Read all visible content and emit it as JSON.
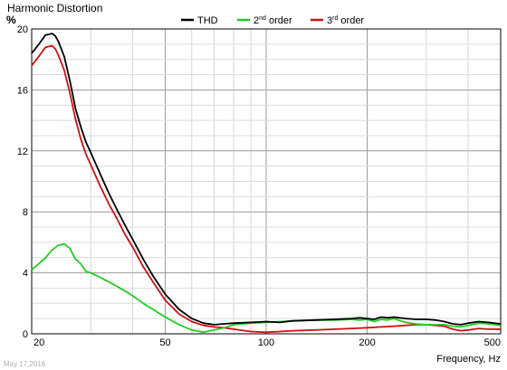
{
  "chart_data": {
    "type": "line",
    "title": "Harmonic Distortion",
    "ylabel": "%",
    "xlabel": "Frequency, Hz",
    "footer": "May 17,2016",
    "x_scale": "log",
    "xlim": [
      20,
      500
    ],
    "ylim": [
      0,
      20
    ],
    "grid": true,
    "legend_position": "top-center",
    "xticks": [
      20,
      50,
      100,
      200,
      500
    ],
    "xtick_labels": [
      "20",
      "50",
      "100",
      "200",
      "500"
    ],
    "yticks": [
      0,
      4,
      8,
      12,
      16,
      20
    ],
    "ytick_labels": [
      "0",
      "4",
      "8",
      "12",
      "16",
      "20"
    ],
    "series": [
      {
        "name": "THD",
        "name_parts": [
          "THD",
          "",
          ""
        ],
        "color": "#000000",
        "x": [
          20,
          21,
          22,
          23,
          23.5,
          24,
          25,
          26,
          27,
          28,
          29,
          30,
          32,
          34,
          36,
          38,
          40,
          43,
          46,
          50,
          55,
          60,
          65,
          70,
          75,
          80,
          90,
          100,
          110,
          120,
          140,
          160,
          180,
          190,
          200,
          210,
          220,
          230,
          240,
          260,
          280,
          300,
          320,
          340,
          360,
          380,
          400,
          430,
          460,
          500
        ],
        "values": [
          18.4,
          19.0,
          19.6,
          19.7,
          19.55,
          19.2,
          18.2,
          16.6,
          14.8,
          13.6,
          12.6,
          11.9,
          10.5,
          9.2,
          8.1,
          7.1,
          6.2,
          4.9,
          3.8,
          2.6,
          1.6,
          1.0,
          0.7,
          0.6,
          0.65,
          0.7,
          0.75,
          0.8,
          0.75,
          0.85,
          0.9,
          0.95,
          1.0,
          1.05,
          1.0,
          0.95,
          1.1,
          1.05,
          1.1,
          1.0,
          0.95,
          0.95,
          0.9,
          0.8,
          0.65,
          0.6,
          0.7,
          0.8,
          0.75,
          0.65
        ]
      },
      {
        "name": "2nd order",
        "name_parts": [
          "2",
          "nd",
          " order"
        ],
        "color": "#22cc22",
        "x": [
          20,
          21,
          22,
          23,
          24,
          25,
          26,
          27,
          28,
          29,
          30,
          32,
          34,
          36,
          38,
          40,
          43,
          46,
          50,
          55,
          60,
          65,
          70,
          75,
          80,
          90,
          100,
          110,
          120,
          140,
          160,
          180,
          190,
          200,
          210,
          220,
          230,
          240,
          260,
          280,
          300,
          320,
          340,
          360,
          380,
          400,
          430,
          460,
          500
        ],
        "values": [
          4.2,
          4.6,
          5.0,
          5.5,
          5.8,
          5.9,
          5.6,
          4.9,
          4.6,
          4.1,
          4.0,
          3.7,
          3.4,
          3.1,
          2.8,
          2.5,
          2.0,
          1.6,
          1.1,
          0.6,
          0.25,
          0.1,
          0.25,
          0.4,
          0.6,
          0.7,
          0.75,
          0.8,
          0.85,
          0.9,
          0.9,
          0.95,
          0.9,
          0.95,
          0.8,
          0.95,
          0.9,
          1.0,
          0.75,
          0.65,
          0.6,
          0.6,
          0.6,
          0.5,
          0.45,
          0.55,
          0.7,
          0.65,
          0.55
        ]
      },
      {
        "name": "3rd order",
        "name_parts": [
          "3",
          "rd",
          " order"
        ],
        "color": "#cc1111",
        "x": [
          20,
          21,
          22,
          23,
          23.5,
          24,
          25,
          26,
          27,
          28,
          29,
          30,
          32,
          34,
          36,
          38,
          40,
          43,
          46,
          50,
          55,
          60,
          65,
          70,
          75,
          80,
          90,
          100,
          110,
          120,
          140,
          160,
          180,
          200,
          220,
          240,
          260,
          280,
          300,
          320,
          340,
          360,
          380,
          400,
          430,
          460,
          500
        ],
        "values": [
          17.6,
          18.2,
          18.8,
          18.9,
          18.7,
          18.3,
          17.3,
          15.8,
          14.1,
          12.8,
          11.8,
          11.1,
          9.7,
          8.5,
          7.5,
          6.5,
          5.7,
          4.4,
          3.4,
          2.2,
          1.3,
          0.8,
          0.55,
          0.45,
          0.4,
          0.3,
          0.15,
          0.1,
          0.15,
          0.2,
          0.25,
          0.3,
          0.35,
          0.4,
          0.45,
          0.5,
          0.55,
          0.6,
          0.6,
          0.55,
          0.5,
          0.3,
          0.2,
          0.25,
          0.35,
          0.3,
          0.3
        ]
      }
    ]
  }
}
